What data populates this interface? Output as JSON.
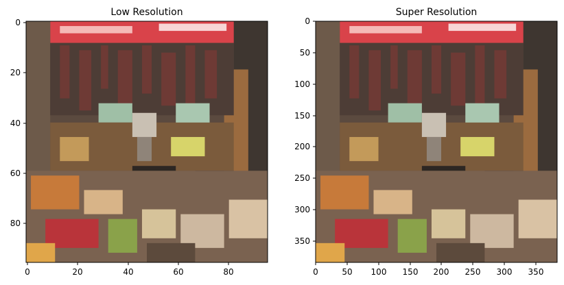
{
  "panels": [
    {
      "title": "Low Resolution",
      "x_ticks": [
        "0",
        "20",
        "40",
        "60",
        "80"
      ],
      "y_ticks": [
        "0",
        "20",
        "40",
        "60",
        "80"
      ]
    },
    {
      "title": "Super Resolution",
      "x_ticks": [
        "0",
        "50",
        "100",
        "150",
        "200",
        "250",
        "300",
        "350"
      ],
      "y_ticks": [
        "0",
        "50",
        "100",
        "150",
        "200",
        "250",
        "300",
        "350"
      ]
    }
  ],
  "image_description_colors": {
    "sign": "#d9434a",
    "shelf": "#7a5a3a",
    "produce_orange": "#c77a3a",
    "produce_green": "#8aa24a",
    "shadow": "#2d2723"
  }
}
